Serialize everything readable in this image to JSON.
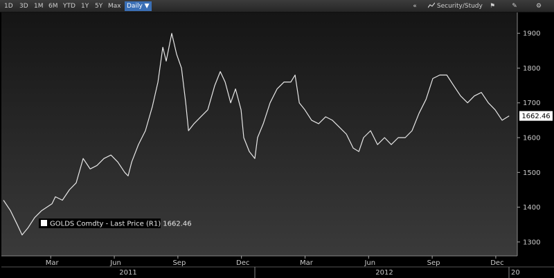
{
  "toolbar": {
    "ranges": [
      "1D",
      "3D",
      "1M",
      "6M",
      "YTD",
      "1Y",
      "5Y",
      "Max"
    ],
    "frequency": "Daily ▼",
    "study": "Security/Study"
  },
  "chart_data": {
    "type": "line",
    "legend_label": "GOLDS Comdty - Last Price (R1) 1662.46",
    "x": [
      -0.23,
      0.1,
      0.42,
      0.65,
      0.92,
      1.24,
      1.57,
      2.06,
      2.22,
      2.55,
      2.88,
      3.2,
      3.53,
      3.86,
      4.18,
      4.51,
      4.84,
      5.16,
      5.49,
      5.65,
      5.82,
      6.14,
      6.47,
      6.8,
      7.06,
      7.29,
      7.45,
      7.71,
      7.94,
      8.17,
      8.37,
      8.5,
      8.76,
      9.08,
      9.41,
      9.74,
      10.0,
      10.23,
      10.49,
      10.72,
      10.98,
      11.11,
      11.37,
      11.63,
      11.76,
      12.03,
      12.35,
      12.68,
      13.01,
      13.33,
      13.53,
      13.73,
      13.99,
      14.31,
      14.64,
      14.97,
      15.29,
      15.62,
      15.95,
      16.27,
      16.54,
      16.76,
      17.09,
      17.42,
      17.75,
      18.07,
      18.4,
      18.73,
      19.05,
      19.38,
      19.71,
      20.03,
      20.36,
      20.69,
      21.01,
      21.34,
      21.67,
      21.99,
      22.32,
      22.65,
      22.97,
      23.3,
      23.63
    ],
    "series": [
      {
        "name": "GOLDS Comdty",
        "color": "#e8e8e8",
        "values": [
          1420,
          1390,
          1350,
          1320,
          1340,
          1370,
          1390,
          1410,
          1430,
          1420,
          1450,
          1470,
          1540,
          1510,
          1520,
          1540,
          1550,
          1530,
          1500,
          1490,
          1530,
          1580,
          1620,
          1690,
          1760,
          1860,
          1820,
          1900,
          1840,
          1800,
          1700,
          1620,
          1640,
          1660,
          1680,
          1750,
          1790,
          1760,
          1700,
          1740,
          1680,
          1600,
          1560,
          1540,
          1600,
          1640,
          1700,
          1740,
          1760,
          1760,
          1780,
          1700,
          1680,
          1650,
          1640,
          1660,
          1650,
          1630,
          1610,
          1570,
          1560,
          1600,
          1620,
          1580,
          1600,
          1580,
          1600,
          1600,
          1620,
          1670,
          1710,
          1770,
          1780,
          1780,
          1750,
          1720,
          1700,
          1720,
          1730,
          1700,
          1680,
          1650,
          1662.46
        ]
      }
    ],
    "xlim": [
      -0.23,
      23.95
    ],
    "xticks": [
      {
        "value": 2,
        "label": "Mar"
      },
      {
        "value": 5,
        "label": "Jun"
      },
      {
        "value": 8,
        "label": "Sep"
      },
      {
        "value": 11,
        "label": "Dec"
      },
      {
        "value": 14,
        "label": "Mar"
      },
      {
        "value": 17,
        "label": "Jun"
      },
      {
        "value": 20,
        "label": "Sep"
      },
      {
        "value": 23,
        "label": "Dec"
      }
    ],
    "year_labels": [
      "2011",
      "2012",
      "20"
    ],
    "ylim": [
      1260,
      1960
    ],
    "yticks": [
      1300,
      1400,
      1500,
      1600,
      1700,
      1800,
      1900
    ],
    "grid": false
  }
}
